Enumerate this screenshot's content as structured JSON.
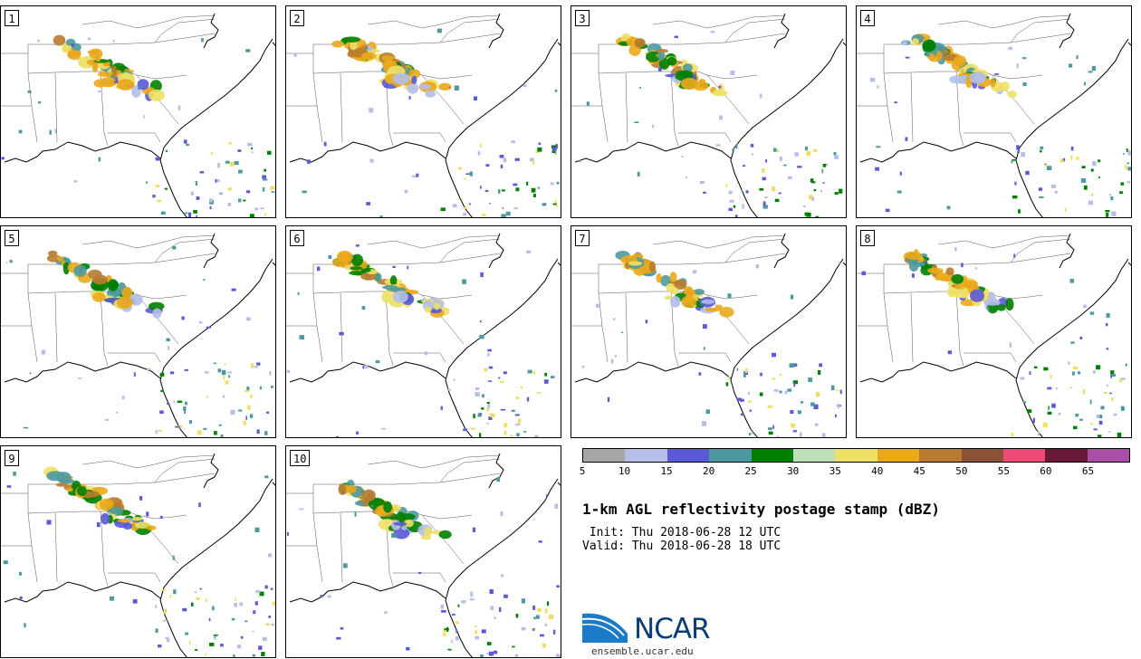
{
  "panels": [
    {
      "label": "1"
    },
    {
      "label": "2"
    },
    {
      "label": "3"
    },
    {
      "label": "4"
    },
    {
      "label": "5"
    },
    {
      "label": "6"
    },
    {
      "label": "7"
    },
    {
      "label": "8"
    },
    {
      "label": "9"
    },
    {
      "label": "10"
    }
  ],
  "colorbar": {
    "colors": [
      "#a6a6a6",
      "#b4bee8",
      "#5a5ad8",
      "#4c9aa0",
      "#008000",
      "#bde0b8",
      "#ede065",
      "#eaa81b",
      "#b87c30",
      "#8c5238",
      "#ee4a78",
      "#6a1838",
      "#a850a8"
    ],
    "ticks": [
      "5",
      "10",
      "15",
      "20",
      "25",
      "30",
      "35",
      "40",
      "45",
      "50",
      "55",
      "60",
      "65"
    ]
  },
  "title": "1-km AGL reflectivity postage stamp (dBZ)",
  "init": "Thu 2018-06-28 12 UTC",
  "valid": "Thu 2018-06-28 18 UTC",
  "init_label": " Init:",
  "valid_label": "Valid:",
  "logo": {
    "text": "NCAR",
    "url": "ensemble.ucar.edu",
    "brand_color": "#0b3e73",
    "swoosh_color": "#1a7cc8"
  }
}
